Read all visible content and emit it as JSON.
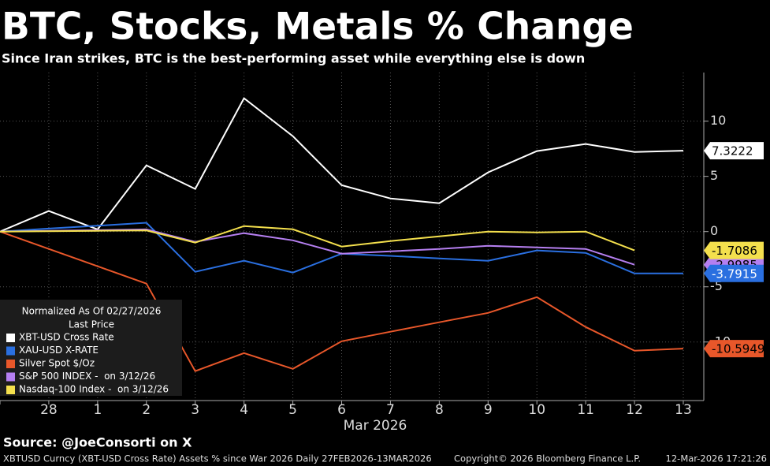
{
  "chart_data": {
    "type": "line",
    "title": "BTC, Stocks, Metals % Change",
    "subtitle": "Since Iran strikes, BTC is the best-performing asset while everything else is down",
    "x_label": "Mar 2026",
    "categories": [
      null,
      "28",
      "1",
      "2",
      "3",
      "4",
      "5",
      "6",
      "7",
      "8",
      "9",
      "10",
      "11",
      "12",
      "13"
    ],
    "series": [
      {
        "name": "XBT-USD Cross Rate",
        "color": "#ffffff",
        "label_text": "#000000",
        "values": [
          0,
          1.86,
          0.2,
          6.0,
          3.86,
          12.07,
          8.64,
          4.2,
          3.0,
          2.57,
          5.36,
          7.29,
          7.93,
          7.21,
          7.3222
        ]
      },
      {
        "name": "XAU-USD X-RATE",
        "color": "#2a6fe0",
        "label_text": "#ffffff",
        "values": [
          0,
          0.27,
          0.53,
          0.8,
          -3.64,
          -2.64,
          -3.71,
          -2.0,
          -2.2,
          -2.43,
          -2.64,
          -1.71,
          -1.93,
          -3.79,
          -3.7915
        ]
      },
      {
        "name": "Silver Spot $/Oz",
        "color": "#e8572a",
        "label_text": "#000000",
        "values": [
          0,
          -1.57,
          -3.14,
          -4.71,
          -12.64,
          -11.0,
          -12.43,
          -9.93,
          -9.07,
          -8.21,
          -7.36,
          -5.93,
          -8.64,
          -10.79,
          -10.5949
        ]
      },
      {
        "name": "S&P 500 INDEX -  on 3/12/26",
        "color": "#b57ff0",
        "label_text": "#000000",
        "values": [
          0,
          0.07,
          0.13,
          0.2,
          -0.93,
          -0.14,
          -0.79,
          -2.0,
          -1.79,
          -1.57,
          -1.29,
          -1.43,
          -1.57,
          -2.9985,
          null
        ]
      },
      {
        "name": "Nasdaq-100 Index -  on 3/12/26",
        "color": "#f4e04d",
        "label_text": "#000000",
        "values": [
          0,
          0.03,
          0.07,
          0.1,
          -1.0,
          0.5,
          0.21,
          -1.36,
          -0.86,
          -0.43,
          0,
          -0.07,
          0,
          -1.7086,
          null
        ]
      }
    ],
    "ylim": [
      -15.3,
      14.4
    ],
    "yticks": [
      10,
      5,
      0,
      -5,
      -10
    ],
    "y_axis_side": "right",
    "grid": true,
    "legend": "lower left",
    "legend_title": [
      "Normalized As Of 02/27/2026",
      "Last Price"
    ],
    "source": "Source: @JoeConsorti on X",
    "footer": [
      "XBTUSD Curncy (XBT-USD Cross Rate) Assets % since War 2026 Daily 27FEB2026-13MAR2026",
      "Copyright© 2026 Bloomberg Finance L.P.",
      "12-Mar-2026 17:21:26"
    ]
  }
}
